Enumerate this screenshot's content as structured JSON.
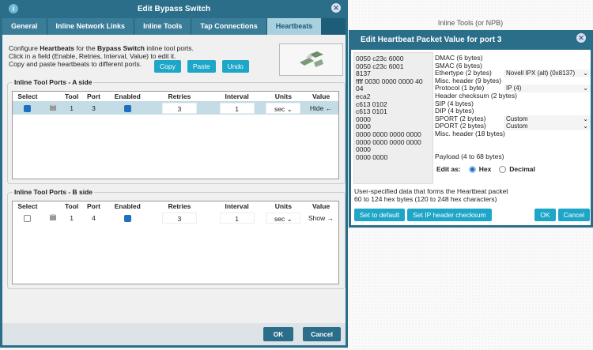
{
  "background": {
    "title": "Inline Tools (or NPB)"
  },
  "dialog": {
    "title": "Edit Bypass Switch",
    "tabs": [
      {
        "label": "General"
      },
      {
        "label": "Inline Network Links"
      },
      {
        "label": "Inline Tools"
      },
      {
        "label": "Tap Connections"
      },
      {
        "label": "Heartbeats",
        "active": true
      }
    ],
    "intro": {
      "l1a": "Configure ",
      "l1b": "Heartbeats",
      "l1c": " for the ",
      "l1d": "Bypass Switch",
      "l1e": " inline tool ports.",
      "l2": "Click in a field (Enable, Retries, Interval, Value) to edit it.",
      "l3": "Copy and paste heartbeats to different ports."
    },
    "copy": "Copy",
    "paste": "Paste",
    "undo": "Undo",
    "columns": [
      "Select",
      "Tool",
      "Port",
      "Enabled",
      "Retries",
      "Interval",
      "Units",
      "Value"
    ],
    "a_side": {
      "legend": "Inline Tool Ports - A side",
      "rows": [
        {
          "select": true,
          "tool": "1",
          "port": "3",
          "enabled": true,
          "retries": "3",
          "interval": "1",
          "units": "sec",
          "value": "Hide",
          "arrow": "←"
        }
      ]
    },
    "b_side": {
      "legend": "Inline Tool Ports - B side",
      "rows": [
        {
          "select": false,
          "tool": "1",
          "port": "4",
          "enabled": true,
          "retries": "3",
          "interval": "1",
          "units": "sec",
          "value": "Show",
          "arrow": "→"
        }
      ]
    },
    "ok": "OK",
    "cancel": "Cancel"
  },
  "heartbeat": {
    "title": "Edit Heartbeat Packet Value for port 3",
    "hex": "0050 c23c 6000\n0050 c23c 6001\n8137\nffff 0030 0000 0000 40\n04\neca2\nc613 0102\nc613 0101\n0000\n0000\n0000 0000 0000 0000\n0000 0000 0000 0000\n0000\n0000 0000",
    "fields": [
      "DMAC (6 bytes)",
      "SMAC (6 bytes)",
      "Ethertype (2 bytes)",
      "Misc. header (9 bytes)",
      "Protocol (1 byte)",
      "Header checksum (2 bytes)",
      "SIP (4 bytes)",
      "DIP (4 bytes)",
      "SPORT (2 bytes)",
      "DPORT (2 bytes)",
      "Misc. header (18 bytes)",
      "",
      "",
      "Payload (4 to 68 bytes)"
    ],
    "ethertype": "Novell IPX (alt) (0x8137)",
    "protocol": "IP (4)",
    "sport": "Custom",
    "dport": "Custom",
    "edit_as": "Edit as:",
    "hex_label": "Hex",
    "decimal_label": "Decimal",
    "mode": "Hex",
    "desc1": "User-specified data that forms the Heartbeat packet",
    "desc2": "60 to 124 hex bytes (120 to 248 hex characters)",
    "set_default": "Set to default",
    "set_checksum": "Set IP header checksum",
    "ok": "OK",
    "cancel": "Cancel"
  }
}
